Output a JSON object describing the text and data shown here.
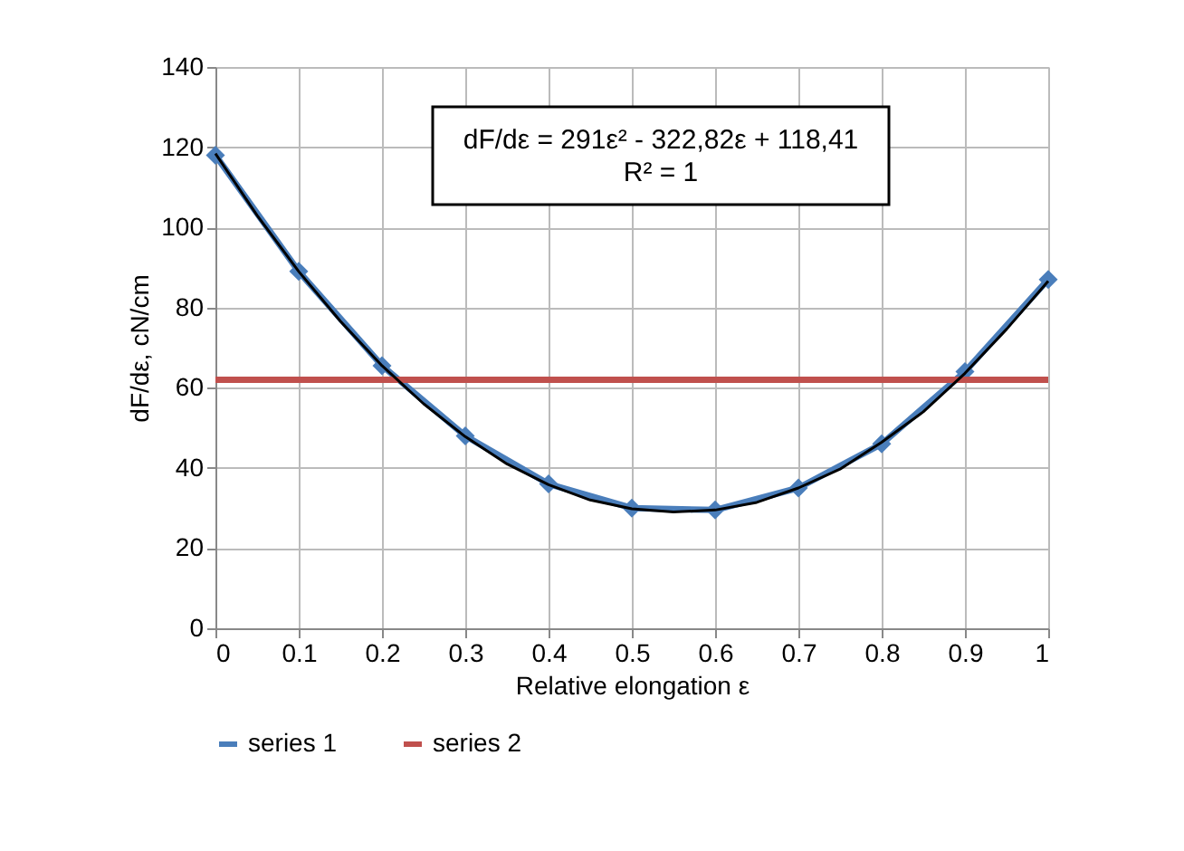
{
  "chart_data": {
    "type": "line",
    "xlabel": "Relative elongation ε",
    "ylabel": "dF/dε, cN/cm",
    "x": [
      0,
      0.1,
      0.2,
      0.3,
      0.4,
      0.5,
      0.6,
      0.7,
      0.8,
      0.9,
      1
    ],
    "series": [
      {
        "name": "series 1",
        "color": "#4a7ebb",
        "marker": "diamond",
        "values": [
          118,
          89,
          65.5,
          48,
          36,
          30,
          29.5,
          35,
          46,
          64,
          87
        ]
      },
      {
        "name": "series 2",
        "color": "#c0504d",
        "marker": "none",
        "x": [
          0,
          1
        ],
        "values": [
          62,
          62
        ]
      },
      {
        "type": "line",
        "color": "#000000",
        "marker": "none",
        "x": [
          0,
          0.05,
          0.1,
          0.15,
          0.2,
          0.25,
          0.3,
          0.35,
          0.4,
          0.45,
          0.5,
          0.55,
          0.6,
          0.65,
          0.7,
          0.75,
          0.8,
          0.85,
          0.9,
          0.95,
          1
        ],
        "values": [
          118.4,
          103.0,
          89.0,
          76.6,
          65.5,
          56.0,
          47.8,
          41.0,
          35.8,
          32.0,
          29.8,
          29.0,
          29.5,
          31.4,
          35.0,
          39.7,
          46.4,
          54.0,
          63.6,
          74.6,
          86.6
        ]
      }
    ],
    "xlim": [
      0,
      1
    ],
    "xticks": [
      0,
      0.1,
      0.2,
      0.3,
      0.4,
      0.5,
      0.6,
      0.7,
      0.8,
      0.9,
      1
    ],
    "ylim": [
      0,
      140
    ],
    "yticks": [
      0,
      20,
      40,
      60,
      80,
      100,
      120,
      140
    ],
    "grid": true,
    "legend": "bottom",
    "annotations": [
      "dF/dε = 291ε² - 322,82ε + 118,41",
      "R² = 1"
    ]
  }
}
